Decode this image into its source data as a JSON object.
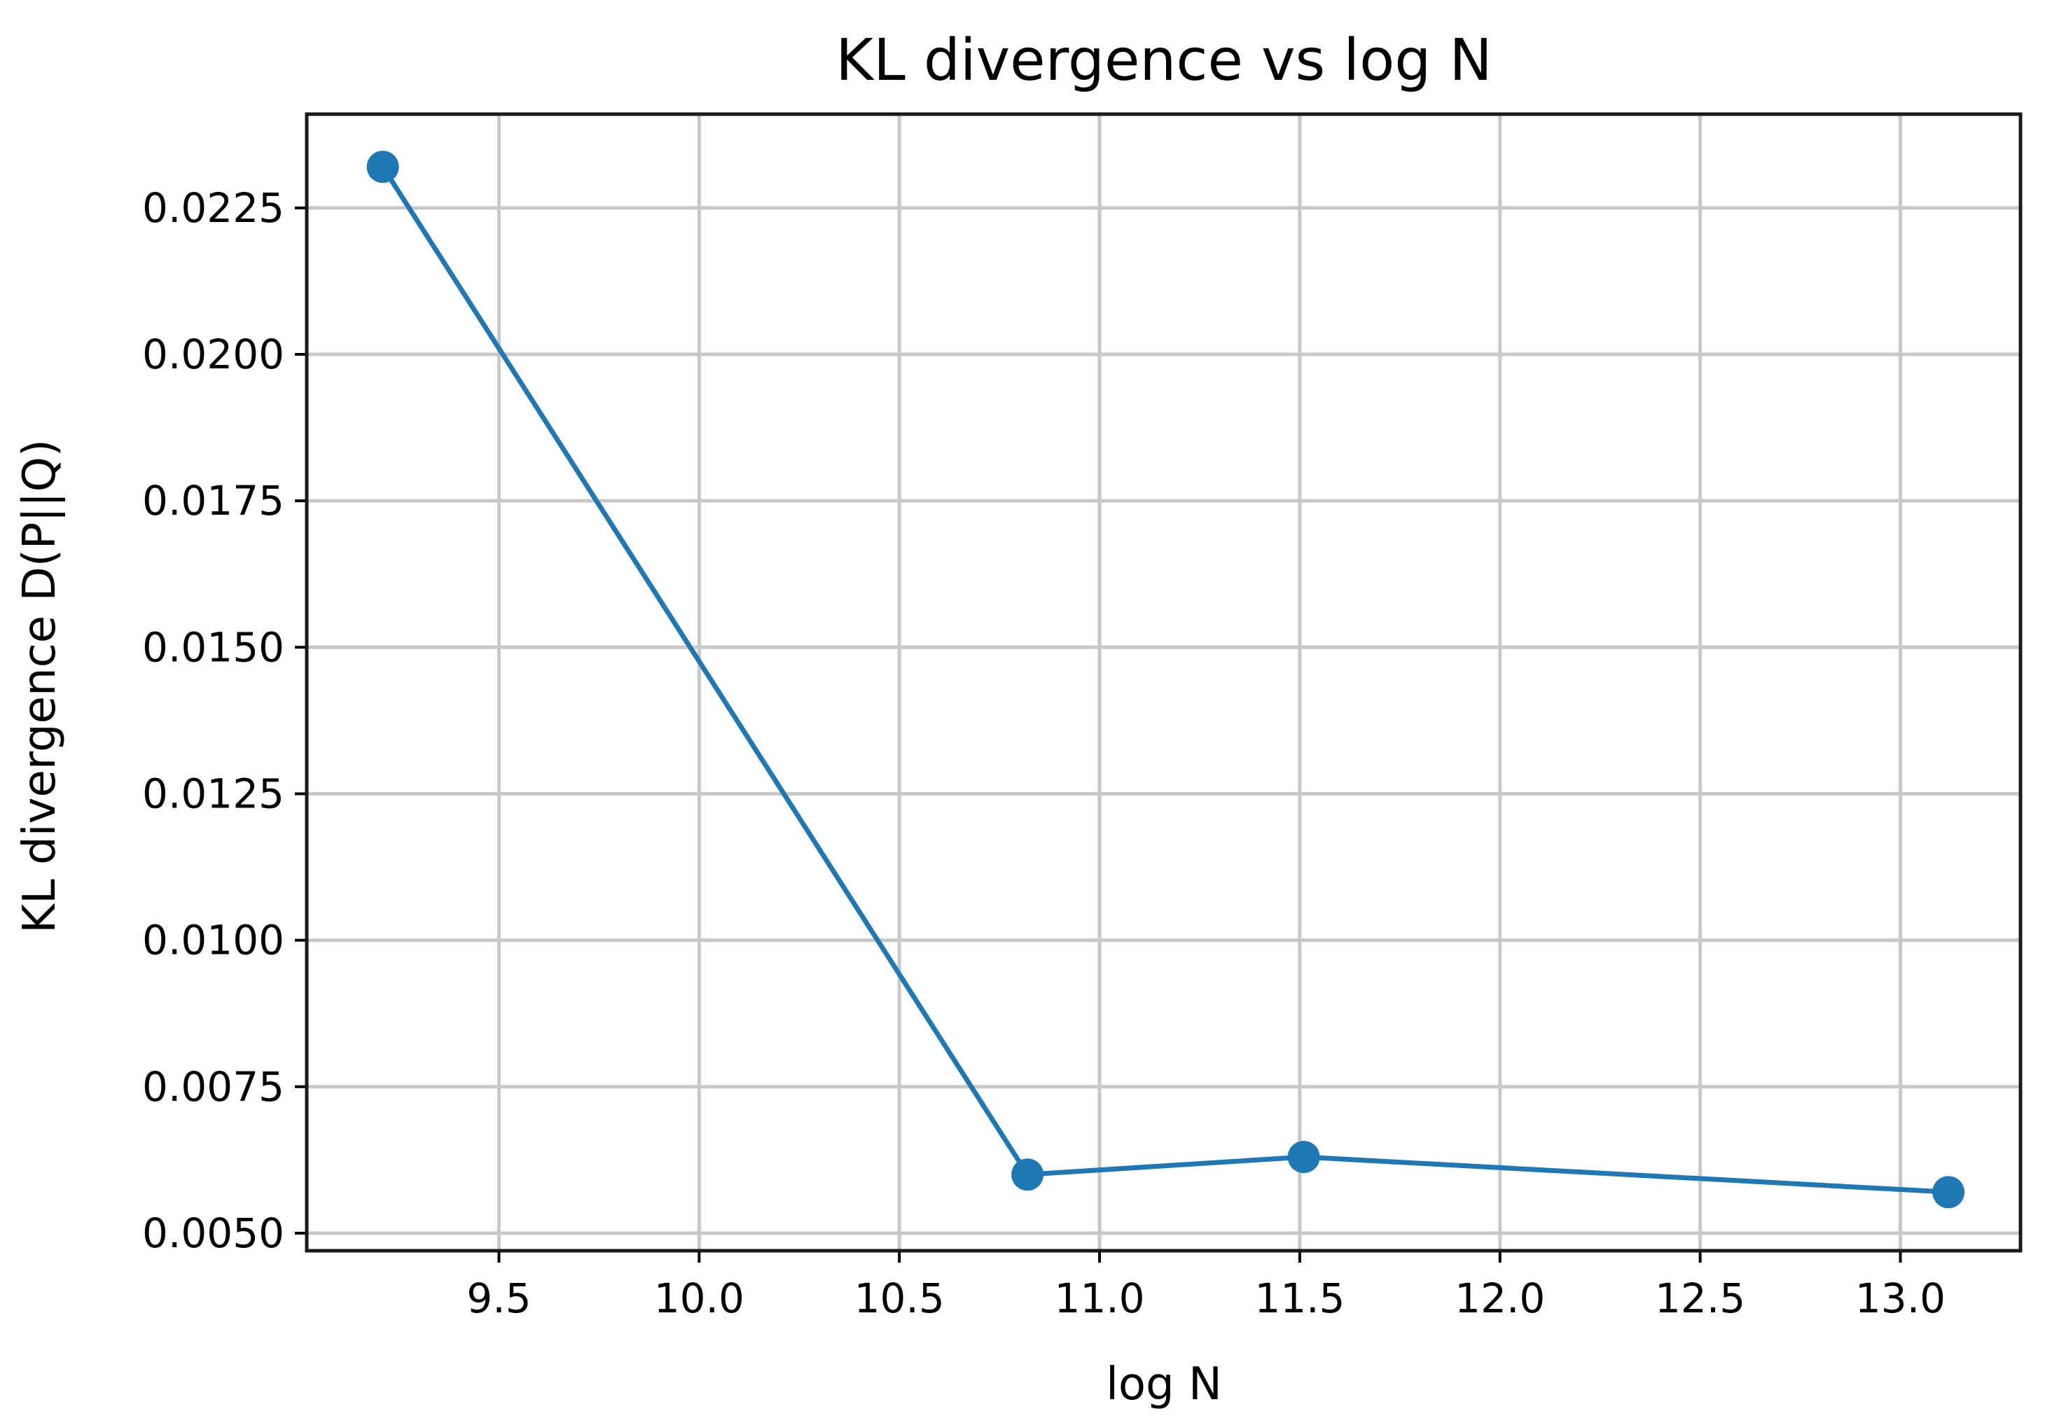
{
  "chart_data": {
    "type": "line",
    "title": "KL divergence vs log N",
    "xlabel": "log N",
    "ylabel": "KL divergence D(P||Q)",
    "xlim": [
      9.02,
      13.3
    ],
    "ylim": [
      0.0047,
      0.0241
    ],
    "grid": true,
    "x_ticks": [
      9.5,
      10.0,
      10.5,
      11.0,
      11.5,
      12.0,
      12.5,
      13.0
    ],
    "x_tick_labels": [
      "9.5",
      "10.0",
      "10.5",
      "11.0",
      "11.5",
      "12.0",
      "12.5",
      "13.0"
    ],
    "y_ticks": [
      0.005,
      0.0075,
      0.01,
      0.0125,
      0.015,
      0.0175,
      0.02,
      0.0225
    ],
    "y_tick_labels": [
      "0.0050",
      "0.0075",
      "0.0100",
      "0.0125",
      "0.0150",
      "0.0175",
      "0.0200",
      "0.0225"
    ],
    "series": [
      {
        "color": "#1f77b4",
        "marker": "circle",
        "x": [
          9.21,
          10.82,
          11.51,
          13.12
        ],
        "y": [
          0.0232,
          0.006,
          0.0063,
          0.0057
        ]
      }
    ]
  }
}
